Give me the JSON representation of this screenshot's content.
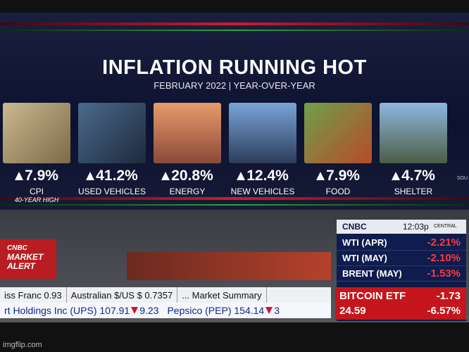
{
  "header": {
    "title": "INFLATION RUNNING HOT",
    "subtitle": "FEBRUARY 2022 | YEAR-OVER-YEAR"
  },
  "items": [
    {
      "value": "7.9%",
      "label": "CPI",
      "note": "40-YEAR HIGH"
    },
    {
      "value": "41.2%",
      "label": "USED VEHICLES"
    },
    {
      "value": "20.8%",
      "label": "ENERGY"
    },
    {
      "value": "12.4%",
      "label": "NEW VEHICLES"
    },
    {
      "value": "7.9%",
      "label": "FOOD"
    },
    {
      "value": "4.7%",
      "label": "SHELTER"
    }
  ],
  "source": "SOU",
  "market_alert": {
    "brand": "CNBC",
    "text": "MARKET ALERT"
  },
  "panel": {
    "brand": "CNBC",
    "time": "12:03p",
    "zone": "CENTRAL",
    "quotes": [
      {
        "name": "WTI (APR)",
        "change": "-2.21%"
      },
      {
        "name": "WTI (MAY)",
        "change": "-2.10%"
      },
      {
        "name": "BRENT (MAY)",
        "change": "-1.53%"
      }
    ],
    "bitcoin": {
      "name": "BITCOIN ETF",
      "price": "24.59",
      "change": "-1.73",
      "percent": "-6.57%"
    }
  },
  "ticker": {
    "row1": [
      "iss Franc 0.93",
      "Australian $/US $ 0.7357",
      "... Market Summary"
    ],
    "row2": [
      {
        "name": "rt Holdings Inc (UPS) 107.91",
        "change": "9.23"
      },
      {
        "name": "Pepsico (PEP) 154.14",
        "change": "3"
      }
    ]
  },
  "watermark": "imgflip.com"
}
